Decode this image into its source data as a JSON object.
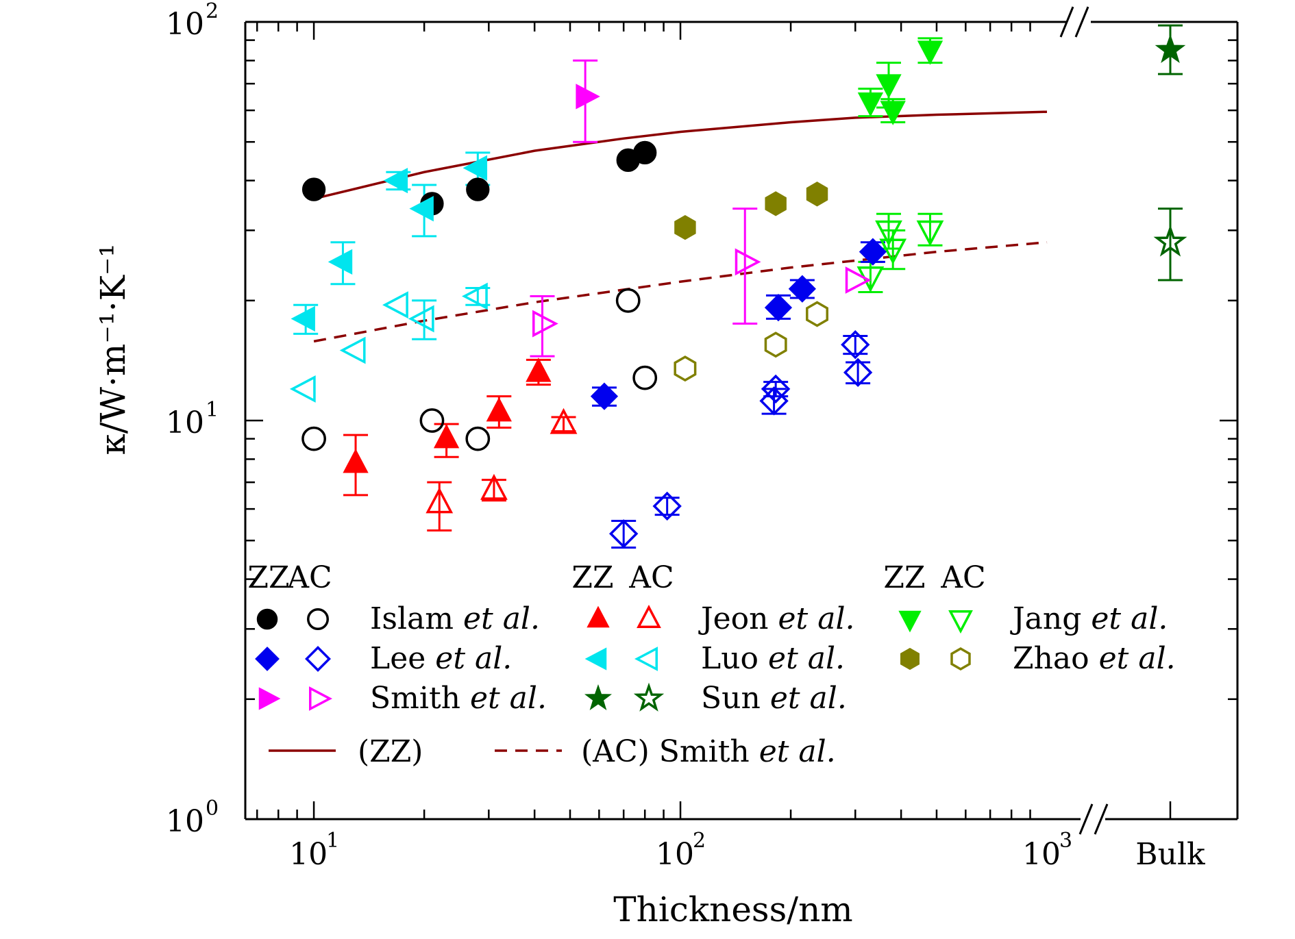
{
  "chart_data": {
    "type": "scatter",
    "xlabel": "Thickness/nm",
    "ylabel": "κ/W·m⁻¹·K⁻¹",
    "x_scale": "log",
    "y_scale": "log",
    "xlim": [
      6.5,
      1000
    ],
    "ylim": [
      1,
      100
    ],
    "x_ticks": [
      {
        "value": 10,
        "label": "10",
        "exp": "1"
      },
      {
        "value": 100,
        "label": "10",
        "exp": "2"
      },
      {
        "value": 1000,
        "label": "10",
        "exp": "3"
      }
    ],
    "y_ticks": [
      {
        "value": 1,
        "label": "10",
        "exp": "0"
      },
      {
        "value": 10,
        "label": "10",
        "exp": "1"
      },
      {
        "value": 100,
        "label": "10",
        "exp": "2"
      }
    ],
    "bulk_label": "Bulk",
    "legend_headers": [
      "ZZ",
      "AC"
    ],
    "series": [
      {
        "name": "Islam et al.",
        "author": "Islam",
        "suffix": "et al.",
        "color": "#000000",
        "marker": "circle",
        "zz": [
          {
            "x": 10,
            "y": 38
          },
          {
            "x": 21,
            "y": 35
          },
          {
            "x": 28,
            "y": 38
          },
          {
            "x": 72,
            "y": 45
          },
          {
            "x": 80,
            "y": 47
          }
        ],
        "ac": [
          {
            "x": 10,
            "y": 9
          },
          {
            "x": 21,
            "y": 10
          },
          {
            "x": 28,
            "y": 9
          },
          {
            "x": 72,
            "y": 20
          },
          {
            "x": 80,
            "y": 12.8
          }
        ]
      },
      {
        "name": "Jeon et al.",
        "author": "Jeon",
        "suffix": "et al.",
        "color": "#ff0000",
        "marker": "triangle-up",
        "zz": [
          {
            "x": 13,
            "y": 7.8,
            "err": [
              6.5,
              9.2
            ]
          },
          {
            "x": 23,
            "y": 9,
            "err": [
              8.1,
              9.8
            ]
          },
          {
            "x": 32,
            "y": 10.5,
            "err": [
              9.6,
              11.5
            ]
          },
          {
            "x": 41,
            "y": 13.2,
            "err": [
              12.3,
              14.2
            ]
          }
        ],
        "ac": [
          {
            "x": 22,
            "y": 6.2,
            "err": [
              5.3,
              7
            ]
          },
          {
            "x": 31,
            "y": 6.7,
            "err": [
              6.3,
              7.1
            ]
          },
          {
            "x": 48,
            "y": 9.8,
            "err": [
              9.4,
              10.2
            ]
          }
        ]
      },
      {
        "name": "Jang et al.",
        "author": "Jang",
        "suffix": "et al.",
        "color": "#00ee00",
        "marker": "triangle-down",
        "zz": [
          {
            "x": 330,
            "y": 63,
            "err": [
              58,
              68
            ]
          },
          {
            "x": 370,
            "y": 70,
            "err": [
              61,
              79
            ]
          },
          {
            "x": 380,
            "y": 60,
            "err": [
              56,
              64
            ]
          },
          {
            "x": 480,
            "y": 85,
            "err": [
              79,
              91
            ]
          }
        ],
        "ac": [
          {
            "x": 330,
            "y": 23,
            "err": [
              21,
              25
            ]
          },
          {
            "x": 370,
            "y": 30,
            "err": [
              27,
              33
            ]
          },
          {
            "x": 380,
            "y": 27,
            "err": [
              24,
              30
            ]
          },
          {
            "x": 480,
            "y": 30,
            "err": [
              27.5,
              33
            ]
          }
        ]
      },
      {
        "name": "Lee et al.",
        "author": "Lee",
        "suffix": "et al.",
        "color": "#0000ee",
        "marker": "diamond",
        "zz": [
          {
            "x": 62,
            "y": 11.5,
            "err": [
              10.9,
              12.1
            ]
          },
          {
            "x": 185,
            "y": 19.2,
            "err": [
              18,
              20.6
            ]
          },
          {
            "x": 215,
            "y": 21.4,
            "err": [
              20.3,
              22.5
            ]
          },
          {
            "x": 335,
            "y": 26.5,
            "err": [
              25,
              28
            ]
          }
        ],
        "ac": [
          {
            "x": 70,
            "y": 5.2,
            "err": [
              4.8,
              5.6
            ]
          },
          {
            "x": 92,
            "y": 6.1,
            "err": [
              5.8,
              6.4
            ]
          },
          {
            "x": 180,
            "y": 11.2,
            "err": [
              10.4,
              12
            ]
          },
          {
            "x": 182,
            "y": 12,
            "err": [
              11.5,
              12.5
            ]
          },
          {
            "x": 300,
            "y": 15.5,
            "err": [
              14.7,
              16.3
            ]
          },
          {
            "x": 305,
            "y": 13.2,
            "err": [
              12.4,
              14
            ]
          }
        ]
      },
      {
        "name": "Luo et al.",
        "author": "Luo",
        "suffix": "et al.",
        "color": "#00e5ee",
        "marker": "triangle-left",
        "zz": [
          {
            "x": 9.5,
            "y": 18,
            "err": [
              16.5,
              19.5
            ]
          },
          {
            "x": 12,
            "y": 25,
            "err": [
              22,
              28
            ]
          },
          {
            "x": 17,
            "y": 40,
            "err": [
              38,
              42
            ]
          },
          {
            "x": 20,
            "y": 34,
            "err": [
              29,
              39
            ]
          },
          {
            "x": 28,
            "y": 43,
            "err": [
              39,
              47
            ]
          }
        ],
        "ac": [
          {
            "x": 9.5,
            "y": 12
          },
          {
            "x": 13,
            "y": 15
          },
          {
            "x": 17,
            "y": 19.5
          },
          {
            "x": 20,
            "y": 18,
            "err": [
              16,
              20
            ]
          },
          {
            "x": 28,
            "y": 20.5,
            "err": [
              19.5,
              21.5
            ]
          }
        ]
      },
      {
        "name": "Zhao et al.",
        "author": "Zhao",
        "suffix": "et al.",
        "color": "#808000",
        "marker": "hexagon",
        "zz": [
          {
            "x": 103,
            "y": 30.5
          },
          {
            "x": 182,
            "y": 35
          },
          {
            "x": 236,
            "y": 37
          }
        ],
        "ac": [
          {
            "x": 103,
            "y": 13.5
          },
          {
            "x": 182,
            "y": 15.5
          },
          {
            "x": 236,
            "y": 18.5
          }
        ]
      },
      {
        "name": "Smith et al.",
        "author": "Smith",
        "suffix": "et al.",
        "color": "#ff00ff",
        "marker": "triangle-right",
        "zz": [
          {
            "x": 55,
            "y": 65,
            "err": [
              50,
              80
            ]
          }
        ],
        "ac": [
          {
            "x": 42,
            "y": 17.5,
            "err": [
              14.5,
              20.5
            ]
          },
          {
            "x": 150,
            "y": 25,
            "err": [
              17.5,
              34
            ]
          },
          {
            "x": 300,
            "y": 22.5
          }
        ]
      },
      {
        "name": "Sun et al.",
        "author": "Sun",
        "suffix": "et al.",
        "color": "#006400",
        "marker": "star",
        "zz": [
          {
            "x": "Bulk",
            "y": 85,
            "err": [
              74,
              98
            ]
          }
        ],
        "ac": [
          {
            "x": "Bulk",
            "y": 28,
            "err": [
              22.5,
              34
            ]
          }
        ]
      }
    ],
    "lines": [
      {
        "name": "(ZZ)",
        "style": "solid",
        "color": "#8b0000",
        "x": [
          10,
          20,
          40,
          70,
          100,
          200,
          300,
          500,
          1000
        ],
        "y": [
          36,
          42,
          47.5,
          51,
          53,
          56,
          57.5,
          58.5,
          59.5
        ]
      },
      {
        "name": "(AC) Smith et al.",
        "label_main": "(AC) Smith",
        "label_suffix": "et al.",
        "style": "dashed",
        "color": "#8b0000",
        "x": [
          10,
          20,
          40,
          100,
          200,
          500,
          1000
        ],
        "y": [
          15.8,
          17.8,
          19.8,
          22.3,
          24.2,
          26.5,
          28
        ]
      }
    ],
    "grid": false,
    "legend_position": "inside-bottom"
  }
}
